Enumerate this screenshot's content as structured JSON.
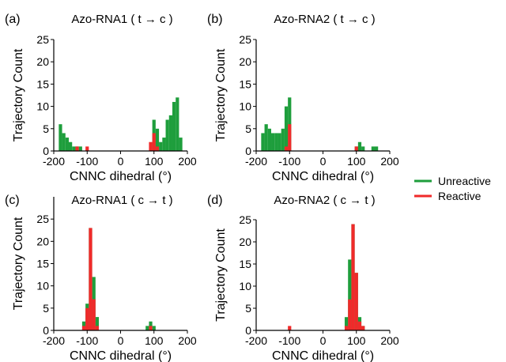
{
  "colors": {
    "unreactive": "#1e9e3c",
    "reactive": "#f02a2a",
    "axis": "#000000"
  },
  "legend": {
    "unreactive_label": "Unreactive",
    "reactive_label": "Reactive",
    "placement": "right-middle"
  },
  "chart_data": [
    {
      "type": "bar",
      "panel_label": "(a)",
      "title": "Azo-RNA1 ( t → c )",
      "xlabel": "CNNC dihedral (°)",
      "ylabel": "Trajectory Count",
      "xlim": [
        -200,
        200
      ],
      "ylim": [
        0,
        25
      ],
      "xticks": [
        -200,
        -100,
        0,
        100,
        200
      ],
      "yticks": [
        0,
        5,
        10,
        15,
        20,
        25
      ],
      "bin_width": 10,
      "series": [
        {
          "name": "Unreactive",
          "color": "#1e9e3c",
          "bars": [
            {
              "x": -180,
              "value": 6
            },
            {
              "x": -170,
              "value": 4
            },
            {
              "x": -160,
              "value": 3
            },
            {
              "x": -150,
              "value": 2
            },
            {
              "x": -140,
              "value": 1
            },
            {
              "x": -130,
              "value": 1
            },
            {
              "x": -120,
              "value": 1
            },
            {
              "x": 100,
              "value": 7
            },
            {
              "x": 110,
              "value": 5
            },
            {
              "x": 120,
              "value": 2
            },
            {
              "x": 130,
              "value": 3
            },
            {
              "x": 140,
              "value": 7
            },
            {
              "x": 150,
              "value": 8
            },
            {
              "x": 160,
              "value": 11
            },
            {
              "x": 170,
              "value": 12
            },
            {
              "x": 180,
              "value": 3
            }
          ]
        },
        {
          "name": "Reactive",
          "color": "#f02a2a",
          "bars": [
            {
              "x": -130,
              "value": 1
            },
            {
              "x": -100,
              "value": 1
            },
            {
              "x": 90,
              "value": 2
            },
            {
              "x": 100,
              "value": 4
            },
            {
              "x": 110,
              "value": 1
            }
          ]
        }
      ]
    },
    {
      "type": "bar",
      "panel_label": "(b)",
      "title": "Azo-RNA2 ( t → c )",
      "xlabel": "CNNC dihedral (°)",
      "ylabel": "Trajectory Count",
      "xlim": [
        -200,
        200
      ],
      "ylim": [
        0,
        25
      ],
      "xticks": [
        -200,
        -100,
        0,
        100,
        200
      ],
      "yticks": [
        0,
        5,
        10,
        15,
        20,
        25
      ],
      "bin_width": 10,
      "series": [
        {
          "name": "Unreactive",
          "color": "#1e9e3c",
          "bars": [
            {
              "x": -180,
              "value": 4
            },
            {
              "x": -170,
              "value": 6
            },
            {
              "x": -160,
              "value": 5
            },
            {
              "x": -150,
              "value": 4
            },
            {
              "x": -140,
              "value": 4
            },
            {
              "x": -130,
              "value": 4
            },
            {
              "x": -120,
              "value": 5
            },
            {
              "x": -110,
              "value": 10
            },
            {
              "x": -100,
              "value": 12
            },
            {
              "x": 100,
              "value": 1
            },
            {
              "x": 110,
              "value": 2
            },
            {
              "x": 120,
              "value": 1
            },
            {
              "x": 150,
              "value": 1
            },
            {
              "x": 160,
              "value": 1
            }
          ]
        },
        {
          "name": "Reactive",
          "color": "#f02a2a",
          "bars": [
            {
              "x": -110,
              "value": 1
            },
            {
              "x": -100,
              "value": 6
            },
            {
              "x": 100,
              "value": 1
            }
          ]
        }
      ]
    },
    {
      "type": "bar",
      "panel_label": "(c)",
      "title": "Azo-RNA1 ( c → t )",
      "xlabel": "CNNC dihedral (°)",
      "ylabel": "Trajectory Count",
      "xlim": [
        -200,
        200
      ],
      "ylim": [
        0,
        30
      ],
      "xticks": [
        -200,
        -100,
        0,
        100,
        200
      ],
      "yticks": [
        0,
        5,
        10,
        15,
        20,
        25
      ],
      "bin_width": 10,
      "series": [
        {
          "name": "Unreactive",
          "color": "#1e9e3c",
          "bars": [
            {
              "x": -110,
              "value": 2
            },
            {
              "x": -100,
              "value": 6
            },
            {
              "x": -90,
              "value": 23
            },
            {
              "x": -80,
              "value": 12
            },
            {
              "x": -70,
              "value": 3
            },
            {
              "x": 80,
              "value": 1
            },
            {
              "x": 90,
              "value": 2
            },
            {
              "x": 100,
              "value": 1
            }
          ]
        },
        {
          "name": "Reactive",
          "color": "#f02a2a",
          "bars": [
            {
              "x": -110,
              "value": 1
            },
            {
              "x": -100,
              "value": 5
            },
            {
              "x": -90,
              "value": 23
            },
            {
              "x": -80,
              "value": 7
            },
            {
              "x": -70,
              "value": 1
            },
            {
              "x": 90,
              "value": 1
            }
          ]
        }
      ]
    },
    {
      "type": "bar",
      "panel_label": "(d)",
      "title": "Azo-RNA2 ( c → t )",
      "xlabel": "CNNC dihedral (°)",
      "ylabel": "Trajectory Count",
      "xlim": [
        -200,
        200
      ],
      "ylim": [
        0,
        25
      ],
      "xticks": [
        -200,
        -100,
        0,
        100,
        200
      ],
      "yticks": [
        0,
        5,
        10,
        15,
        20,
        25
      ],
      "bin_width": 10,
      "series": [
        {
          "name": "Unreactive",
          "color": "#1e9e3c",
          "bars": [
            {
              "x": 70,
              "value": 3
            },
            {
              "x": 80,
              "value": 16
            },
            {
              "x": 90,
              "value": 24
            },
            {
              "x": 100,
              "value": 13
            },
            {
              "x": 110,
              "value": 3
            },
            {
              "x": 120,
              "value": 1
            }
          ]
        },
        {
          "name": "Reactive",
          "color": "#f02a2a",
          "bars": [
            {
              "x": -100,
              "value": 1
            },
            {
              "x": 70,
              "value": 1
            },
            {
              "x": 80,
              "value": 7
            },
            {
              "x": 90,
              "value": 24
            },
            {
              "x": 100,
              "value": 13
            },
            {
              "x": 110,
              "value": 2
            },
            {
              "x": 120,
              "value": 1
            }
          ]
        }
      ]
    }
  ]
}
